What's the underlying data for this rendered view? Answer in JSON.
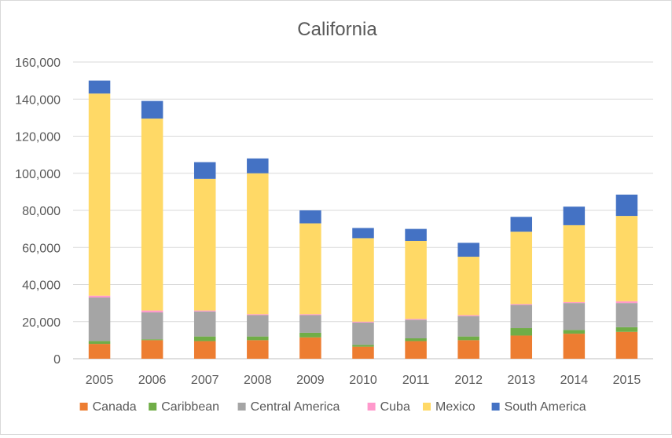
{
  "chart_data": {
    "type": "bar",
    "stacked": true,
    "title": "California",
    "xlabel": "",
    "ylabel": "",
    "ylim": [
      0,
      160000
    ],
    "ytick_step": 20000,
    "yticks": [
      "0",
      "20,000",
      "40,000",
      "60,000",
      "80,000",
      "100,000",
      "120,000",
      "140,000",
      "160,000"
    ],
    "grid": true,
    "legend_position": "bottom",
    "categories": [
      "2005",
      "2006",
      "2007",
      "2008",
      "2009",
      "2010",
      "2011",
      "2012",
      "2013",
      "2014",
      "2015"
    ],
    "series": [
      {
        "name": "Canada",
        "color": "#ED7D31",
        "values": [
          8000,
          10000,
          9500,
          10000,
          11500,
          6500,
          9500,
          10000,
          12500,
          13500,
          14500
        ]
      },
      {
        "name": "Caribbean",
        "color": "#70AD47",
        "values": [
          1500,
          500,
          2500,
          2000,
          2500,
          1000,
          1500,
          2000,
          4000,
          2000,
          2500
        ]
      },
      {
        "name": "Central America",
        "color": "#A5A5A5",
        "values": [
          23500,
          14500,
          13500,
          11500,
          9500,
          12000,
          10000,
          11000,
          12500,
          14500,
          13000
        ]
      },
      {
        "name": "Cuba",
        "color": "#FF99CC",
        "values": [
          1000,
          1000,
          500,
          500,
          500,
          500,
          500,
          500,
          500,
          500,
          1000
        ]
      },
      {
        "name": "Mexico",
        "color": "#FFD966",
        "values": [
          109000,
          103500,
          71000,
          76000,
          49000,
          45000,
          42000,
          31500,
          39000,
          41500,
          46000
        ]
      },
      {
        "name": "South America",
        "color": "#4472C4",
        "values": [
          7000,
          9500,
          9000,
          8000,
          7000,
          5500,
          6500,
          7500,
          8000,
          10000,
          11500
        ]
      }
    ]
  }
}
